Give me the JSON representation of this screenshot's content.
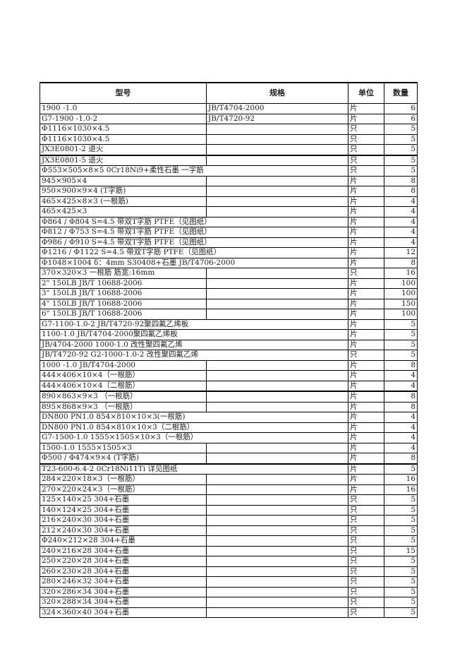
{
  "headers": [
    "型号",
    "规格",
    "单位",
    "数量"
  ],
  "rows": [
    {
      "model": "1900 -1.0",
      "spec": "JB/T4704-2000",
      "unit": "片",
      "qty": "6"
    },
    {
      "model": "G7-1900 -1.0-2",
      "spec": "JB/T4720-92",
      "unit": "片",
      "qty": "6"
    },
    {
      "model": "Φ1116×1030×4.5",
      "spec": "",
      "unit": "只",
      "qty": "5"
    },
    {
      "model": "Φ1116×1030×4.5",
      "spec": "",
      "unit": "只",
      "qty": "5"
    },
    {
      "model": "JX3E0801-2  退火",
      "spec": "",
      "unit": "只",
      "qty": "5"
    },
    {
      "model": "JX3E0801-5  退火",
      "spec": "",
      "unit": "只",
      "qty": "5"
    },
    {
      "model": "Φ553×505×8×5 0Cr18Ni9+柔性石墨  一字筋",
      "spec": "",
      "unit": "只",
      "qty": "5"
    },
    {
      "model": "945×905×4",
      "spec": "",
      "unit": "片",
      "qty": "8"
    },
    {
      "model": "950×900×9×4 (T字筋)",
      "spec": "",
      "unit": "片",
      "qty": "8"
    },
    {
      "model": "465×425×8×3  (一根筋)",
      "spec": "",
      "unit": "片",
      "qty": "4"
    },
    {
      "model": "465×425×3",
      "spec": "",
      "unit": "片",
      "qty": "4"
    },
    {
      "model": "Φ864 / Φ804  S=4.5 带双T字筋 PTFE（见图纸）",
      "spec": "",
      "unit": "片",
      "qty": "4"
    },
    {
      "model": "Φ812 / Φ753  S=4.5 带双T字筋 PTFE（见图纸）",
      "spec": "",
      "unit": "片",
      "qty": "4"
    },
    {
      "model": "Φ986 / Φ910  S=4.5 带双T字筋 PTFE（见图纸）",
      "spec": "",
      "unit": "片",
      "qty": "4"
    },
    {
      "model": "Φ1216 / Φ1122  S=4.5 带双T字筋 PTFE（见图纸）",
      "spec": "",
      "unit": "片",
      "qty": "12"
    },
    {
      "model": "Φ1048×1004 δ：4mm  S30408+石墨  JB/T4706-2000",
      "spec": "",
      "unit": "片",
      "qty": "8"
    },
    {
      "model": "370×320×3  一根筋  筋宽:16mm",
      "spec": "",
      "unit": "只",
      "qty": "16"
    },
    {
      "model": "2\"  150LB JB/T 10688-2006",
      "spec": "",
      "unit": "片",
      "qty": "100"
    },
    {
      "model": "3\"  150LB JB/T 10688-2006",
      "spec": "",
      "unit": "片",
      "qty": "100"
    },
    {
      "model": "4\"  150LB JB/T 10688-2006",
      "spec": "",
      "unit": "片",
      "qty": "150"
    },
    {
      "model": "6\"  150LB JB/T 10688-2006",
      "spec": "",
      "unit": "片",
      "qty": "100"
    },
    {
      "model": "G7-1100-1.0-2 JB/T4720-92聚四氟乙烯板",
      "spec": "",
      "unit": "片",
      "qty": "5"
    },
    {
      "model": "1100-1.0 JB/T4704-2000聚四氟乙烯板",
      "spec": "",
      "unit": "片",
      "qty": "5"
    },
    {
      "model": "JB/4704-2000  1000-1.0 改性聚四氟乙烯",
      "spec": "",
      "unit": "片",
      "qty": "5"
    },
    {
      "model": "JB/T4720-92   G2-1000-1.0-2 改性聚四氟乙烯",
      "spec": "",
      "unit": "只",
      "qty": "5"
    },
    {
      "model": "1000 -1.0    JB/T4704-2000",
      "spec": "",
      "unit": "片",
      "qty": "8"
    },
    {
      "model": "444×406×10×4（一根筋）",
      "spec": "",
      "unit": "片",
      "qty": "4"
    },
    {
      "model": "444×406×10×4（二根筋）",
      "spec": "",
      "unit": "片",
      "qty": "4"
    },
    {
      "model": "890×863×9×3 （一根筋）",
      "spec": "",
      "unit": "片",
      "qty": "8"
    },
    {
      "model": "895×868×9×3 （一根筋）",
      "spec": "",
      "unit": "片",
      "qty": "8"
    },
    {
      "model": "DN800 PN1.0  854×810×10×3(一根筋)",
      "spec": "",
      "unit": "片",
      "qty": "4"
    },
    {
      "model": "DN800 PN1.0  854×810×10×3（二根筋）",
      "spec": "",
      "unit": "片",
      "qty": "4"
    },
    {
      "model": "G7-1500-1.0   1555×1505×10×3（一根筋）",
      "spec": "",
      "unit": "片",
      "qty": "4"
    },
    {
      "model": "1500-1.0   1555×1505×3",
      "spec": "",
      "unit": "片",
      "qty": "4"
    },
    {
      "model": "Φ500 / Φ474×9×4  (T字筋)",
      "spec": "",
      "unit": "片",
      "qty": "8"
    },
    {
      "model": "T23-600-6.4-2 0Cr18Ni11Ti  详见图纸",
      "spec": "",
      "unit": "片",
      "qty": "5"
    },
    {
      "model": "284×220×18×3（一根筋）",
      "spec": "",
      "unit": "片",
      "qty": "16"
    },
    {
      "model": "270×220×24×3（一根筋）",
      "spec": "",
      "unit": "片",
      "qty": "16"
    },
    {
      "model": "125×140×25  304+石墨",
      "spec": "",
      "unit": "只",
      "qty": "5"
    },
    {
      "model": "140×124×25 304+石墨",
      "spec": "",
      "unit": "只",
      "qty": "5"
    },
    {
      "model": "216×240×30 304+石墨",
      "spec": "",
      "unit": "只",
      "qty": "5"
    },
    {
      "model": "212×240×30  304+石墨",
      "spec": "",
      "unit": "只",
      "qty": "5"
    },
    {
      "model": "Φ240×212×28  304+石墨",
      "spec": "",
      "unit": "只",
      "qty": "5"
    },
    {
      "model": "240×216×28  304+石墨",
      "spec": "",
      "unit": "只",
      "qty": "15"
    },
    {
      "model": "250×220×28  304+石墨",
      "spec": "",
      "unit": "只",
      "qty": "5"
    },
    {
      "model": "260×230×28  304+石墨",
      "spec": "",
      "unit": "只",
      "qty": "5"
    },
    {
      "model": "280×246×32  304+石墨",
      "spec": "",
      "unit": "只",
      "qty": "5"
    },
    {
      "model": "320×286×34  304+石墨",
      "spec": "",
      "unit": "只",
      "qty": "5"
    },
    {
      "model": "320×288×34  304+石墨",
      "spec": "",
      "unit": "只",
      "qty": "5"
    },
    {
      "model": "324×360×40  304+石墨",
      "spec": "",
      "unit": "只",
      "qty": "5"
    }
  ]
}
